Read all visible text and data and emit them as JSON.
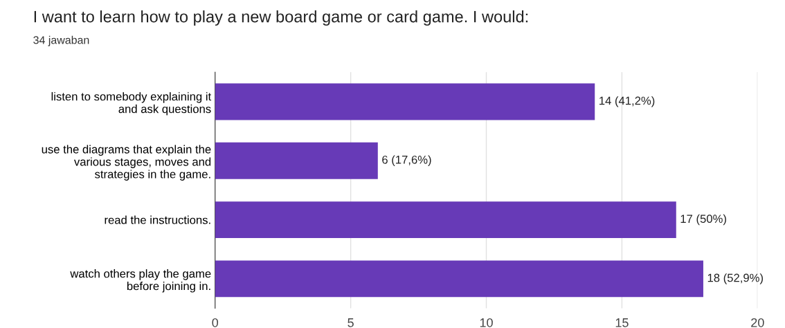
{
  "chart_data": {
    "type": "bar",
    "orientation": "horizontal",
    "title": "I want to learn how to play a new board game or card game. I would:",
    "subtitle": "34 jawaban",
    "categories": [
      "listen to somebody explaining it\nand ask questions",
      "use the diagrams that explain the\nvarious stages, moves and\nstrategies in the game.",
      "read the instructions.",
      "watch others play the game\nbefore joining in."
    ],
    "values": [
      14,
      6,
      17,
      18
    ],
    "value_labels": [
      "14 (41,2%)",
      "6 (17,6%)",
      "17 (50%)",
      "18 (52,9%)"
    ],
    "color": "#673ab7",
    "xlim": [
      0,
      20
    ],
    "xticks": [
      0,
      5,
      10,
      15,
      20
    ],
    "grid": "x",
    "legend": false
  }
}
